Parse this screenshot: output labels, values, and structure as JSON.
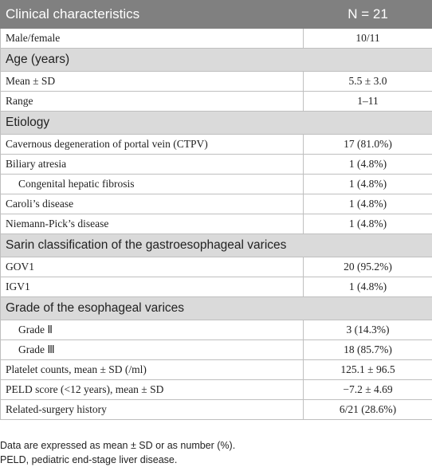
{
  "table": {
    "header": [
      "Clinical characteristics",
      "N = 21"
    ],
    "rows": [
      {
        "label": "Male/female",
        "value": "10/11"
      },
      {
        "label": "Age (years)",
        "section": true
      },
      {
        "label": "Mean ± SD",
        "value": "5.5 ± 3.0"
      },
      {
        "label": "Range",
        "value": "1–11"
      },
      {
        "label": "Etiology",
        "section": true
      },
      {
        "label": "Cavernous degeneration of portal vein (CTPV)",
        "value": "17 (81.0%)"
      },
      {
        "label": "Biliary atresia",
        "value": "1 (4.8%)"
      },
      {
        "label": "Congenital hepatic fibrosis",
        "value": "1 (4.8%)",
        "indent": true
      },
      {
        "label": "Caroli’s disease",
        "value": "1 (4.8%)"
      },
      {
        "label": "Niemann-Pick’s disease",
        "value": "1 (4.8%)"
      },
      {
        "label": "Sarin classification of the gastroesophageal varices",
        "section": true
      },
      {
        "label": "GOV1",
        "value": "20 (95.2%)"
      },
      {
        "label": "IGV1",
        "value": "1 (4.8%)"
      },
      {
        "label": "Grade of the esophageal varices",
        "section": true
      },
      {
        "label": "Grade Ⅱ",
        "value": "3 (14.3%)",
        "indent": true
      },
      {
        "label": "Grade Ⅲ",
        "value": "18 (85.7%)",
        "indent": true
      },
      {
        "label": "Platelet counts, mean ± SD (/ml)",
        "value": "125.1 ± 96.5"
      },
      {
        "label": "PELD score (<12 years), mean ± SD",
        "value": "−7.2 ± 4.69"
      },
      {
        "label": "Related-surgery history",
        "value": "6/21 (28.6%)"
      }
    ]
  },
  "footnotes": [
    "Data are expressed as mean ± SD or as number (%).",
    "PELD, pediatric end-stage liver disease."
  ]
}
